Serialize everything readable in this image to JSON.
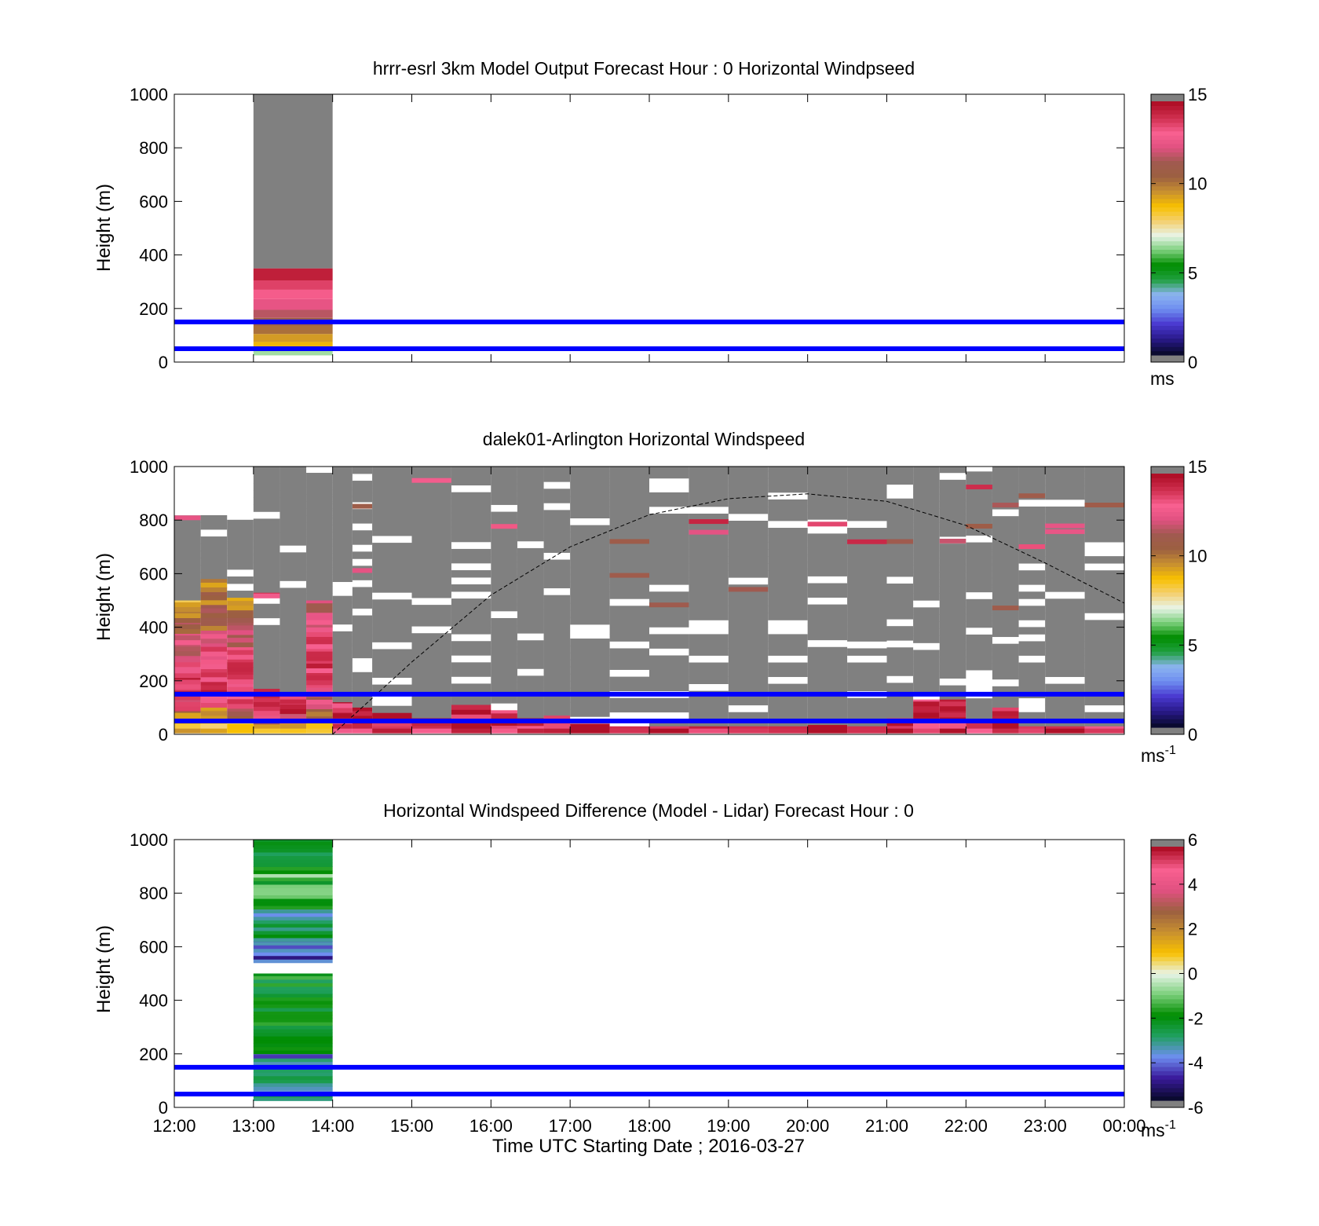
{
  "figure": {
    "xlabel": "Time UTC  Starting Date ; 2016-03-27",
    "x_ticks": [
      "12:00",
      "13:00",
      "14:00",
      "15:00",
      "16:00",
      "17:00",
      "18:00",
      "19:00",
      "20:00",
      "21:00",
      "22:00",
      "23:00",
      "00:00"
    ],
    "y_ticks": [
      "0",
      "200",
      "400",
      "600",
      "800",
      "1000"
    ],
    "reference_lines": {
      "heights_m": [
        50,
        150
      ],
      "color": "#0000ff"
    }
  },
  "chart_data": [
    {
      "type": "heatmap",
      "title": "hrrr-esrl 3km Model Output   Forecast Hour : 0 Horizontal Windpseed",
      "ylabel": "Height (m)",
      "xlim": [
        "12:00",
        "00:00"
      ],
      "ylim": [
        0,
        1000
      ],
      "colorbar": {
        "ticks": [
          "0",
          "5",
          "10",
          "15"
        ],
        "unit": "ms",
        "range": [
          0,
          15
        ]
      },
      "columns": [
        {
          "t0": "13:00",
          "t1": "14:00",
          "bins": [
            {
              "h0": 25,
              "h1": 45,
              "v": 6.5
            },
            {
              "h0": 45,
              "h1": 75,
              "v": 9.0
            },
            {
              "h0": 75,
              "h1": 105,
              "v": 9.5
            },
            {
              "h0": 105,
              "h1": 135,
              "v": 10.3
            },
            {
              "h0": 135,
              "h1": 165,
              "v": 10.8
            },
            {
              "h0": 165,
              "h1": 195,
              "v": 11.8
            },
            {
              "h0": 195,
              "h1": 235,
              "v": 12.6
            },
            {
              "h0": 235,
              "h1": 270,
              "v": 13.3
            },
            {
              "h0": 270,
              "h1": 305,
              "v": 13.8
            },
            {
              "h0": 305,
              "h1": 350,
              "v": 14.6
            },
            {
              "h0": 350,
              "h1": 1000,
              "v": "nan"
            }
          ]
        }
      ]
    },
    {
      "type": "heatmap",
      "title": "dalek01-Arlington  Horizontal Windspeed",
      "ylabel": "Height (m)",
      "xlim": [
        "12:00",
        "00:00"
      ],
      "ylim": [
        0,
        1000
      ],
      "colorbar": {
        "ticks": [
          "0",
          "5",
          "10",
          "15"
        ],
        "unit": "ms-1",
        "range": [
          0,
          15
        ]
      },
      "solar_curve": {
        "t": [
          "14:00",
          "15:00",
          "16:00",
          "17:00",
          "18:00",
          "19:00",
          "20:00",
          "21:00",
          "22:00",
          "23:00",
          "00:00"
        ],
        "h": [
          0,
          270,
          520,
          700,
          820,
          880,
          898,
          870,
          780,
          640,
          490
        ]
      },
      "columns": [
        {
          "t0": "12:00",
          "t1": "12:20",
          "top": 500,
          "profile": [
            9,
            10,
            13,
            14,
            14,
            13,
            13,
            12,
            12,
            11,
            10,
            9
          ]
        },
        {
          "t0": "12:20",
          "t1": "12:40",
          "top": 580,
          "profile": [
            9,
            10,
            13,
            14,
            14,
            13,
            13,
            12,
            11,
            11,
            10,
            10
          ]
        },
        {
          "t0": "12:40",
          "t1": "13:00",
          "top": 510,
          "profile": [
            9,
            11,
            13,
            14,
            14,
            14,
            13,
            12,
            12,
            11,
            10
          ]
        },
        {
          "t0": "13:00",
          "t1": "13:20",
          "top": 170,
          "profile": [
            9,
            12,
            14,
            14,
            14
          ]
        },
        {
          "t0": "13:20",
          "t1": "13:40",
          "top": 150,
          "profile": [
            9,
            12,
            14,
            14
          ]
        },
        {
          "t0": "13:40",
          "t1": "14:00",
          "top": 500,
          "profile": [
            9,
            11,
            12,
            13,
            14,
            14,
            14,
            14,
            13,
            12,
            12
          ]
        },
        {
          "t0": "14:00",
          "t1": "14:15",
          "top": 120,
          "profile": [
            14,
            15,
            14
          ]
        },
        {
          "t0": "14:15",
          "t1": "14:30",
          "top": 100,
          "profile": [
            14,
            15
          ]
        },
        {
          "t0": "14:30",
          "t1": "15:00",
          "top": 80,
          "profile": [
            14,
            14,
            15
          ]
        },
        {
          "t0": "15:00",
          "t1": "15:30",
          "top": 60,
          "profile": [
            14,
            15
          ]
        },
        {
          "t0": "15:30",
          "t1": "16:00",
          "top": 110,
          "profile": [
            15,
            14,
            15
          ]
        },
        {
          "t0": "16:00",
          "t1": "16:20",
          "top": 90,
          "profile": [
            14,
            15,
            14
          ]
        },
        {
          "t0": "16:20",
          "t1": "16:40",
          "top": 60,
          "profile": [
            14,
            15
          ]
        },
        {
          "t0": "16:40",
          "t1": "17:00",
          "top": 70,
          "profile": [
            14,
            14
          ]
        },
        {
          "t0": "17:00",
          "t1": "17:30",
          "top": 40,
          "profile": [
            15
          ]
        },
        {
          "t0": "17:30",
          "t1": "18:00",
          "top": 30,
          "profile": [
            14
          ]
        },
        {
          "t0": "18:00",
          "t1": "18:30",
          "top": 30,
          "profile": [
            15
          ]
        },
        {
          "t0": "18:30",
          "t1": "19:00",
          "top": 30,
          "profile": [
            14
          ]
        },
        {
          "t0": "19:00",
          "t1": "19:30",
          "top": 30,
          "profile": [
            15
          ]
        },
        {
          "t0": "19:30",
          "t1": "20:00",
          "top": 30,
          "profile": [
            14
          ]
        },
        {
          "t0": "20:00",
          "t1": "20:30",
          "top": 35,
          "profile": [
            15
          ]
        },
        {
          "t0": "20:30",
          "t1": "21:00",
          "top": 30,
          "profile": [
            14
          ]
        },
        {
          "t0": "21:00",
          "t1": "21:20",
          "top": 60,
          "profile": [
            15,
            14
          ]
        },
        {
          "t0": "21:20",
          "t1": "21:40",
          "top": 130,
          "profile": [
            14,
            15,
            14
          ]
        },
        {
          "t0": "21:40",
          "t1": "22:00",
          "top": 130,
          "profile": [
            14,
            15,
            14
          ]
        },
        {
          "t0": "22:00",
          "t1": "22:20",
          "top": 55,
          "profile": [
            14
          ]
        },
        {
          "t0": "22:20",
          "t1": "22:40",
          "top": 100,
          "profile": [
            15,
            14
          ]
        },
        {
          "t0": "22:40",
          "t1": "23:00",
          "top": 30,
          "profile": [
            14
          ]
        },
        {
          "t0": "23:00",
          "t1": "23:30",
          "top": 30,
          "profile": [
            15
          ]
        },
        {
          "t0": "23:30",
          "t1": "00:00",
          "top": 30,
          "profile": [
            14
          ]
        }
      ]
    },
    {
      "type": "heatmap",
      "title": "Horizontal Windspeed Difference (Model - Lidar) Forecast Hour : 0",
      "ylabel": "Height (m)",
      "xlabel": "Time UTC  Starting Date ; 2016-03-27",
      "xlim": [
        "12:00",
        "00:00"
      ],
      "ylim": [
        0,
        1000
      ],
      "colorbar": {
        "ticks": [
          "-6",
          "-4",
          "-2",
          "0",
          "2",
          "4",
          "6"
        ],
        "unit": "ms-1",
        "range": [
          -6,
          6
        ]
      },
      "columns": [
        {
          "t0": "13:00",
          "t1": "14:00",
          "segments": [
            {
              "h0": 25,
              "h1": 200,
              "mean": -3.6,
              "amp": 1.2
            },
            {
              "h0": 200,
              "h1": 500,
              "mean": -2.4,
              "amp": 1.0
            },
            {
              "h0": 540,
              "h1": 620,
              "mean": -4.3,
              "amp": 1.0
            },
            {
              "h0": 620,
              "h1": 740,
              "mean": -3.0,
              "amp": 1.0
            },
            {
              "h0": 740,
              "h1": 900,
              "mean": -1.6,
              "amp": 1.1
            },
            {
              "h0": 900,
              "h1": 1000,
              "mean": -2.8,
              "amp": 0.6
            }
          ]
        }
      ]
    }
  ],
  "colors": {
    "nan_gray": "#808080",
    "line_blue": "#0000ff",
    "colorbar_cap": "#808080",
    "speed_colormap": [
      "#0a0a30",
      "#2a1a8c",
      "#4a3ad0",
      "#6e8ef0",
      "#8cb4f0",
      "#20a040",
      "#008c00",
      "#7acf7a",
      "#e8f4e8",
      "#f4d070",
      "#f8c000",
      "#c89030",
      "#9c6040",
      "#a05a50",
      "#e05080",
      "#f86090",
      "#d03050",
      "#b01028"
    ],
    "diff_colormap": [
      "#0a0a30",
      "#3a1a9c",
      "#6e8ef0",
      "#20a060",
      "#008c00",
      "#7acf7a",
      "#e8f4e8",
      "#f8c000",
      "#c89030",
      "#9c6040",
      "#e05080",
      "#f86090",
      "#b01028"
    ]
  }
}
